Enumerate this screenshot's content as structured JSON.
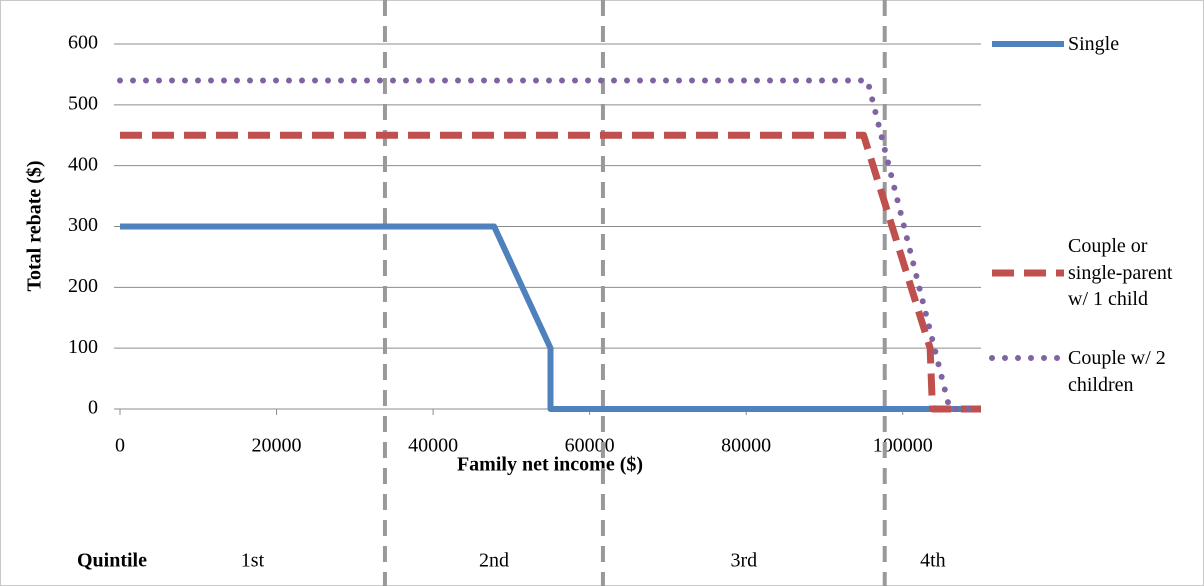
{
  "chart_data": {
    "type": "line",
    "y_label": "Total rebate ($)",
    "x_label": "Family net income ($)",
    "xlim": [
      0,
      110000
    ],
    "xticks": [
      0,
      20000,
      40000,
      60000,
      80000,
      100000
    ],
    "ylim": [
      0,
      600
    ],
    "yticks": [
      0,
      100,
      200,
      300,
      400,
      500,
      600
    ],
    "grid": true,
    "legend": "right",
    "series": [
      {
        "name": "Single",
        "color": "#4f81bd",
        "style": "solid",
        "x": [
          0,
          47800,
          55000,
          55000,
          110000
        ],
        "values": [
          300,
          300,
          100,
          0,
          0
        ]
      },
      {
        "name": "Couple or single-parent w/ 1 child",
        "color": "#c0504d",
        "style": "dashed",
        "x": [
          0,
          95000,
          103500,
          103800,
          110000
        ],
        "values": [
          450,
          450,
          100,
          0,
          0
        ]
      },
      {
        "name": "Couple w/ 2 children",
        "color": "#8064a2",
        "style": "dotted",
        "x": [
          0,
          95500,
          106000,
          110000
        ],
        "values": [
          540,
          540,
          0,
          0
        ]
      }
    ],
    "quintile_title": "Quintile",
    "quintile_labels": [
      "1st",
      "2nd",
      "3rd",
      "4th"
    ],
    "quintile_boundaries": [
      33850,
      61700,
      97700
    ]
  }
}
